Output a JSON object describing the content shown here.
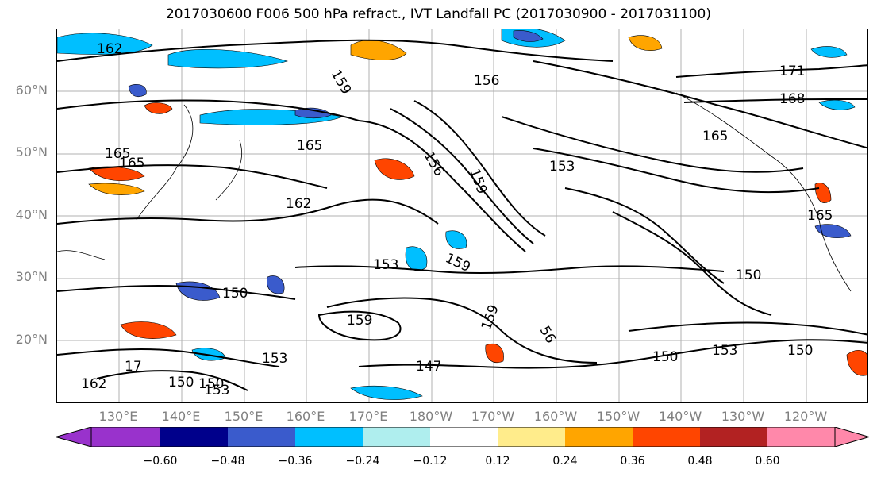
{
  "title": "2017030600 F006 500 hPa refract., IVT Landfall PC (2017030900 - 2017031100)",
  "lat_labels": [
    "60°N",
    "50°N",
    "40°N",
    "30°N",
    "20°N"
  ],
  "lon_labels": [
    "130°E",
    "140°E",
    "150°E",
    "160°E",
    "170°E",
    "180°W",
    "170°W",
    "160°W",
    "150°W",
    "140°W",
    "130°W",
    "120°W"
  ],
  "contour_labels": [
    "162",
    "159",
    "156",
    "171",
    "168",
    "165",
    "165",
    "165",
    "156",
    "153",
    "159",
    "165",
    "162",
    "153",
    "159",
    "150",
    "159",
    "150",
    "159",
    "153",
    "150",
    "153",
    "147",
    "150",
    "150",
    "165",
    "17",
    "162",
    "150",
    "153",
    "56"
  ],
  "colorbar": {
    "ticks": [
      "−0.60",
      "−0.48",
      "−0.36",
      "−0.24",
      "−0.12",
      "0.12",
      "0.24",
      "0.36",
      "0.48",
      "0.60"
    ],
    "colors": [
      "#9932cc",
      "#00008b",
      "#3a5bcc",
      "#00bfff",
      "#afeeee",
      "#ffffff",
      "#ffec8b",
      "#ffa500",
      "#ff4500",
      "#b22222",
      "#ff88aa"
    ]
  }
}
